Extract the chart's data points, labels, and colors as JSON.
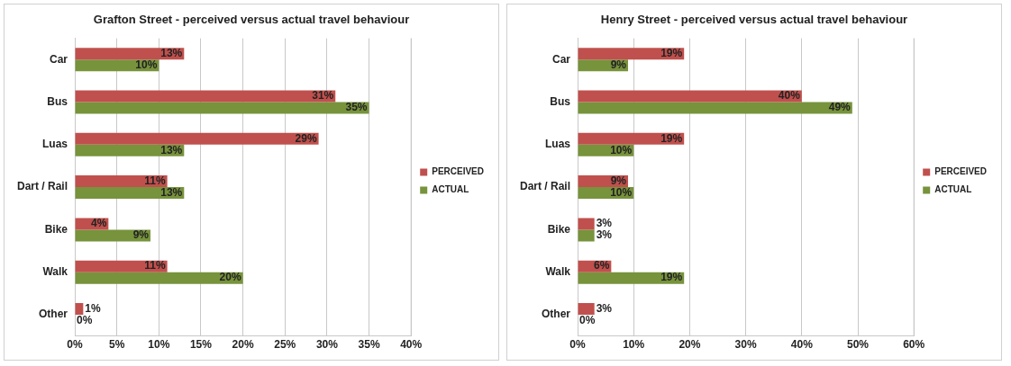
{
  "chart_data": [
    {
      "type": "bar",
      "orientation": "horizontal",
      "title": "Grafton Street - perceived versus actual travel behaviour",
      "categories": [
        "Car",
        "Bus",
        "Luas",
        "Dart / Rail",
        "Bike",
        "Walk",
        "Other"
      ],
      "series": [
        {
          "name": "PERCEIVED",
          "color": "#c0504d",
          "values": [
            13,
            31,
            29,
            11,
            4,
            11,
            1
          ],
          "value_labels": [
            "13%",
            "31%",
            "29%",
            "11%",
            "4%",
            "11%",
            "1%"
          ]
        },
        {
          "name": "ACTUAL",
          "color": "#77933c",
          "values": [
            10,
            35,
            13,
            13,
            9,
            20,
            0
          ],
          "value_labels": [
            "10%",
            "35%",
            "13%",
            "13%",
            "9%",
            "20%",
            "0%"
          ]
        }
      ],
      "xlim": [
        0,
        40
      ],
      "xticks": [
        {
          "value": 0,
          "label": "0%"
        },
        {
          "value": 5,
          "label": "5%"
        },
        {
          "value": 10,
          "label": "10%"
        },
        {
          "value": 15,
          "label": "15%"
        },
        {
          "value": 20,
          "label": "20%"
        },
        {
          "value": 25,
          "label": "25%"
        },
        {
          "value": 30,
          "label": "30%"
        },
        {
          "value": 35,
          "label": "35%"
        },
        {
          "value": 40,
          "label": "40%"
        }
      ],
      "grid": "x",
      "legend": "right"
    },
    {
      "type": "bar",
      "orientation": "horizontal",
      "title": "Henry Street - perceived versus actual travel behaviour",
      "categories": [
        "Car",
        "Bus",
        "Luas",
        "Dart / Rail",
        "Bike",
        "Walk",
        "Other"
      ],
      "series": [
        {
          "name": "PERCEIVED",
          "color": "#c0504d",
          "values": [
            19,
            40,
            19,
            9,
            3,
            6,
            3
          ],
          "value_labels": [
            "19%",
            "40%",
            "19%",
            "9%",
            "3%",
            "6%",
            "3%"
          ]
        },
        {
          "name": "ACTUAL",
          "color": "#77933c",
          "values": [
            9,
            49,
            10,
            10,
            3,
            19,
            0
          ],
          "value_labels": [
            "9%",
            "49%",
            "10%",
            "10%",
            "3%",
            "19%",
            "0%"
          ]
        }
      ],
      "xlim": [
        0,
        60
      ],
      "xticks": [
        {
          "value": 0,
          "label": "0%"
        },
        {
          "value": 10,
          "label": "10%"
        },
        {
          "value": 20,
          "label": "20%"
        },
        {
          "value": 30,
          "label": "30%"
        },
        {
          "value": 40,
          "label": "40%"
        },
        {
          "value": 50,
          "label": "50%"
        },
        {
          "value": 60,
          "label": "60%"
        }
      ],
      "grid": "x",
      "legend": "right"
    }
  ]
}
